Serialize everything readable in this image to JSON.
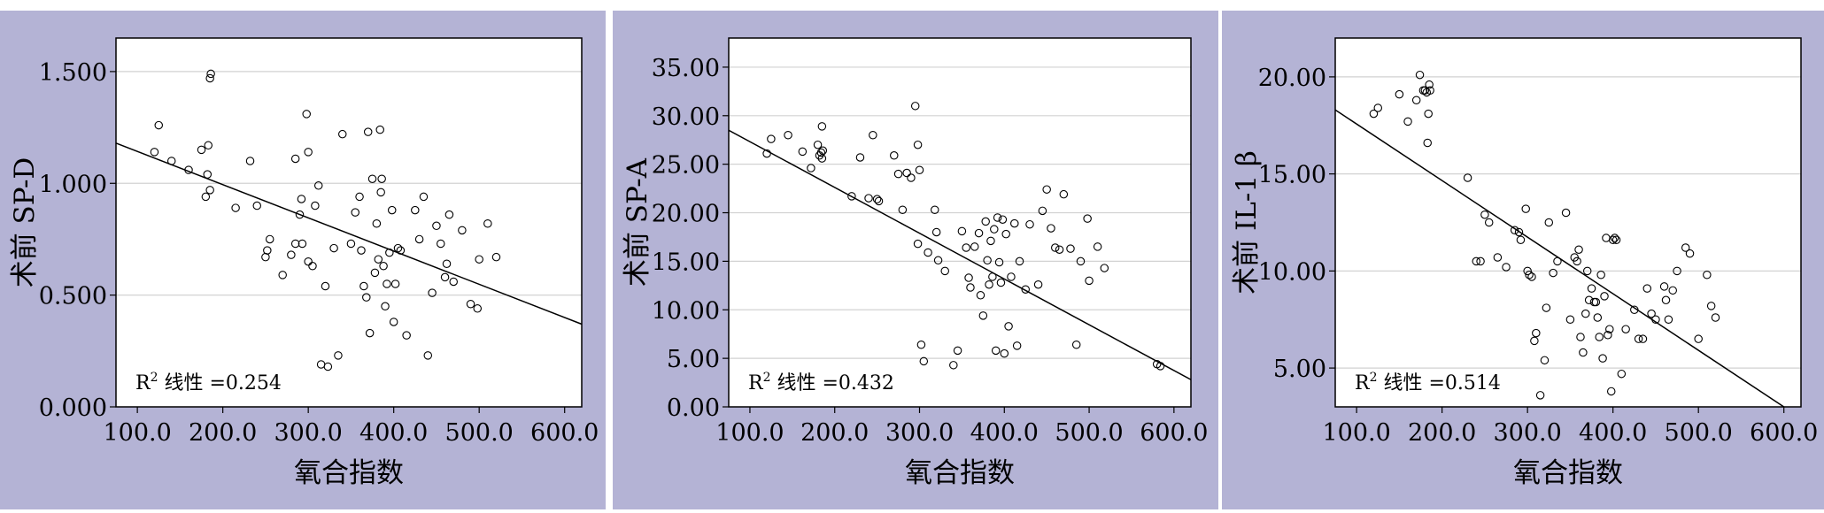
{
  "colors": {
    "panel_background": "#b4b3d5",
    "plot_background": "#ffffff",
    "gridline": "#d2d2d2",
    "axis": "#000000",
    "marker_stroke": "#000000",
    "trend_line": "#000000"
  },
  "chart_data": [
    {
      "type": "scatter",
      "title": "",
      "xlabel": "氧合指数",
      "ylabel": "术前 SP-D",
      "xlim": [
        75,
        620
      ],
      "ylim": [
        0,
        1.65
      ],
      "x_ticks": [
        100,
        200,
        300,
        400,
        500,
        600
      ],
      "x_tick_labels": [
        "100.0",
        "200.0",
        "300.0",
        "400.0",
        "500.0",
        "600.0"
      ],
      "y_ticks": [
        0,
        0.5,
        1.0,
        1.5
      ],
      "y_tick_labels": [
        "0.000",
        "0.500",
        "1.000",
        "1.500"
      ],
      "grid": "horizontal",
      "annotation": {
        "prefix": "R",
        "superscript": "2",
        "suffix": " 线性 =0.254"
      },
      "trend_line": {
        "x": [
          75,
          620
        ],
        "y": [
          1.18,
          0.37
        ]
      },
      "points": [
        [
          125,
          1.26
        ],
        [
          120,
          1.14
        ],
        [
          140,
          1.1
        ],
        [
          160,
          1.06
        ],
        [
          175,
          1.15
        ],
        [
          183,
          1.17
        ],
        [
          182,
          1.04
        ],
        [
          185,
          0.97
        ],
        [
          180,
          0.94
        ],
        [
          185,
          1.47
        ],
        [
          186,
          1.49
        ],
        [
          215,
          0.89
        ],
        [
          232,
          1.1
        ],
        [
          240,
          0.9
        ],
        [
          250,
          0.67
        ],
        [
          252,
          0.7
        ],
        [
          255,
          0.75
        ],
        [
          270,
          0.59
        ],
        [
          280,
          0.68
        ],
        [
          285,
          0.73
        ],
        [
          285,
          1.11
        ],
        [
          290,
          0.86
        ],
        [
          292,
          0.93
        ],
        [
          293,
          0.73
        ],
        [
          298,
          1.31
        ],
        [
          300,
          1.14
        ],
        [
          300,
          0.65
        ],
        [
          305,
          0.63
        ],
        [
          308,
          0.9
        ],
        [
          312,
          0.99
        ],
        [
          315,
          0.19
        ],
        [
          320,
          0.54
        ],
        [
          323,
          0.18
        ],
        [
          330,
          0.71
        ],
        [
          335,
          0.23
        ],
        [
          340,
          1.22
        ],
        [
          350,
          0.73
        ],
        [
          355,
          0.87
        ],
        [
          360,
          0.94
        ],
        [
          362,
          0.7
        ],
        [
          365,
          0.54
        ],
        [
          368,
          0.49
        ],
        [
          370,
          1.23
        ],
        [
          372,
          0.33
        ],
        [
          375,
          1.02
        ],
        [
          378,
          0.6
        ],
        [
          380,
          0.82
        ],
        [
          382,
          0.66
        ],
        [
          384,
          1.24
        ],
        [
          385,
          0.96
        ],
        [
          386,
          1.02
        ],
        [
          388,
          0.63
        ],
        [
          390,
          0.45
        ],
        [
          392,
          0.55
        ],
        [
          395,
          0.69
        ],
        [
          398,
          0.88
        ],
        [
          400,
          0.38
        ],
        [
          402,
          0.55
        ],
        [
          405,
          0.71
        ],
        [
          408,
          0.7
        ],
        [
          415,
          0.32
        ],
        [
          425,
          0.88
        ],
        [
          430,
          0.75
        ],
        [
          435,
          0.94
        ],
        [
          440,
          0.23
        ],
        [
          445,
          0.51
        ],
        [
          450,
          0.81
        ],
        [
          455,
          0.73
        ],
        [
          460,
          0.58
        ],
        [
          462,
          0.64
        ],
        [
          465,
          0.86
        ],
        [
          470,
          0.56
        ],
        [
          480,
          0.79
        ],
        [
          490,
          0.46
        ],
        [
          498,
          0.44
        ],
        [
          500,
          0.66
        ],
        [
          510,
          0.82
        ],
        [
          520,
          0.67
        ]
      ]
    },
    {
      "type": "scatter",
      "title": "",
      "xlabel": "氧合指数",
      "ylabel": "术前 SP-A",
      "xlim": [
        75,
        620
      ],
      "ylim": [
        0,
        38
      ],
      "x_ticks": [
        100,
        200,
        300,
        400,
        500,
        600
      ],
      "x_tick_labels": [
        "100.0",
        "200.0",
        "300.0",
        "400.0",
        "500.0",
        "600.0"
      ],
      "y_ticks": [
        0,
        5,
        10,
        15,
        20,
        25,
        30,
        35
      ],
      "y_tick_labels": [
        "0.00",
        "5.00",
        "10.00",
        "15.00",
        "20.00",
        "25.00",
        "30.00",
        "35.00"
      ],
      "grid": "horizontal",
      "annotation": {
        "prefix": "R",
        "superscript": "2",
        "suffix": " 线性 =0.432"
      },
      "trend_line": {
        "x": [
          75,
          620
        ],
        "y": [
          28.5,
          2.8
        ]
      },
      "points": [
        [
          120,
          26.1
        ],
        [
          125,
          27.6
        ],
        [
          145,
          28.0
        ],
        [
          162,
          26.3
        ],
        [
          172,
          24.6
        ],
        [
          180,
          27.0
        ],
        [
          182,
          25.9
        ],
        [
          184,
          26.2
        ],
        [
          185,
          25.6
        ],
        [
          186,
          26.4
        ],
        [
          185,
          28.9
        ],
        [
          220,
          21.7
        ],
        [
          230,
          25.7
        ],
        [
          240,
          21.5
        ],
        [
          245,
          28.0
        ],
        [
          250,
          21.4
        ],
        [
          252,
          21.2
        ],
        [
          270,
          25.9
        ],
        [
          275,
          24.0
        ],
        [
          280,
          20.3
        ],
        [
          285,
          24.1
        ],
        [
          290,
          23.6
        ],
        [
          295,
          31.0
        ],
        [
          298,
          27.0
        ],
        [
          300,
          24.4
        ],
        [
          298,
          16.8
        ],
        [
          302,
          6.4
        ],
        [
          305,
          4.7
        ],
        [
          310,
          15.9
        ],
        [
          318,
          20.3
        ],
        [
          320,
          18.0
        ],
        [
          322,
          15.1
        ],
        [
          330,
          14.0
        ],
        [
          340,
          4.3
        ],
        [
          345,
          5.8
        ],
        [
          350,
          18.1
        ],
        [
          355,
          16.4
        ],
        [
          358,
          13.3
        ],
        [
          360,
          12.3
        ],
        [
          365,
          16.5
        ],
        [
          370,
          17.9
        ],
        [
          372,
          11.5
        ],
        [
          375,
          9.4
        ],
        [
          378,
          19.1
        ],
        [
          380,
          15.1
        ],
        [
          382,
          12.6
        ],
        [
          384,
          17.1
        ],
        [
          386,
          13.4
        ],
        [
          388,
          18.3
        ],
        [
          390,
          5.8
        ],
        [
          392,
          19.5
        ],
        [
          394,
          14.9
        ],
        [
          396,
          12.8
        ],
        [
          398,
          19.3
        ],
        [
          400,
          5.5
        ],
        [
          402,
          17.8
        ],
        [
          405,
          8.3
        ],
        [
          408,
          13.4
        ],
        [
          412,
          18.9
        ],
        [
          415,
          6.3
        ],
        [
          418,
          15.0
        ],
        [
          425,
          12.1
        ],
        [
          430,
          18.8
        ],
        [
          440,
          12.6
        ],
        [
          445,
          20.2
        ],
        [
          450,
          22.4
        ],
        [
          455,
          18.4
        ],
        [
          460,
          16.4
        ],
        [
          465,
          16.2
        ],
        [
          470,
          21.9
        ],
        [
          478,
          16.3
        ],
        [
          485,
          6.4
        ],
        [
          490,
          15.0
        ],
        [
          498,
          19.4
        ],
        [
          500,
          13.0
        ],
        [
          510,
          16.5
        ],
        [
          518,
          14.3
        ],
        [
          580,
          4.4
        ],
        [
          584,
          4.2
        ]
      ]
    },
    {
      "type": "scatter",
      "title": "",
      "xlabel": "氧合指数",
      "ylabel": "术前 IL-1 β",
      "xlim": [
        75,
        620
      ],
      "ylim": [
        3,
        22
      ],
      "x_ticks": [
        100,
        200,
        300,
        400,
        500,
        600
      ],
      "x_tick_labels": [
        "100.0",
        "200.0",
        "300.0",
        "400.0",
        "500.0",
        "600.0"
      ],
      "y_ticks": [
        5,
        10,
        15,
        20
      ],
      "y_tick_labels": [
        "5.00",
        "10.00",
        "15.00",
        "20.00"
      ],
      "grid": "horizontal",
      "annotation": {
        "prefix": "R",
        "superscript": "2",
        "suffix": " 线性 =0.514"
      },
      "trend_line": {
        "x": [
          75,
          600
        ],
        "y": [
          18.3,
          3.0
        ]
      },
      "points": [
        [
          120,
          18.1
        ],
        [
          125,
          18.4
        ],
        [
          150,
          19.1
        ],
        [
          160,
          17.7
        ],
        [
          170,
          18.8
        ],
        [
          174,
          20.1
        ],
        [
          178,
          19.3
        ],
        [
          180,
          19.3
        ],
        [
          182,
          19.2
        ],
        [
          184,
          18.1
        ],
        [
          185,
          19.6
        ],
        [
          186,
          19.3
        ],
        [
          183,
          16.6
        ],
        [
          230,
          14.8
        ],
        [
          240,
          10.5
        ],
        [
          245,
          10.5
        ],
        [
          250,
          12.9
        ],
        [
          255,
          12.5
        ],
        [
          265,
          10.7
        ],
        [
          275,
          10.2
        ],
        [
          285,
          12.1
        ],
        [
          290,
          12.0
        ],
        [
          292,
          11.6
        ],
        [
          298,
          13.2
        ],
        [
          300,
          10.0
        ],
        [
          302,
          9.8
        ],
        [
          305,
          9.7
        ],
        [
          308,
          6.4
        ],
        [
          310,
          6.8
        ],
        [
          315,
          3.6
        ],
        [
          320,
          5.4
        ],
        [
          322,
          8.1
        ],
        [
          325,
          12.5
        ],
        [
          330,
          9.9
        ],
        [
          335,
          10.5
        ],
        [
          345,
          13.0
        ],
        [
          350,
          7.5
        ],
        [
          355,
          10.7
        ],
        [
          358,
          10.5
        ],
        [
          360,
          11.1
        ],
        [
          362,
          6.6
        ],
        [
          365,
          5.8
        ],
        [
          368,
          7.8
        ],
        [
          370,
          10.0
        ],
        [
          372,
          8.5
        ],
        [
          375,
          9.1
        ],
        [
          378,
          8.4
        ],
        [
          380,
          8.4
        ],
        [
          382,
          7.6
        ],
        [
          384,
          6.6
        ],
        [
          386,
          9.8
        ],
        [
          388,
          5.5
        ],
        [
          390,
          8.7
        ],
        [
          392,
          11.7
        ],
        [
          394,
          6.7
        ],
        [
          396,
          7.0
        ],
        [
          398,
          3.8
        ],
        [
          400,
          11.6
        ],
        [
          402,
          11.7
        ],
        [
          404,
          11.6
        ],
        [
          410,
          4.7
        ],
        [
          415,
          7.0
        ],
        [
          425,
          8.0
        ],
        [
          430,
          6.5
        ],
        [
          435,
          6.5
        ],
        [
          440,
          9.1
        ],
        [
          445,
          7.8
        ],
        [
          450,
          7.5
        ],
        [
          460,
          9.2
        ],
        [
          462,
          8.5
        ],
        [
          465,
          7.5
        ],
        [
          470,
          9.0
        ],
        [
          475,
          10.0
        ],
        [
          485,
          11.2
        ],
        [
          490,
          10.9
        ],
        [
          500,
          6.5
        ],
        [
          510,
          9.8
        ],
        [
          515,
          8.2
        ],
        [
          520,
          7.6
        ]
      ]
    }
  ]
}
